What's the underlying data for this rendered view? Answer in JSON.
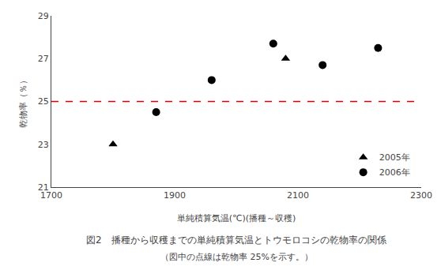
{
  "chart_data": {
    "type": "scatter",
    "title": "図2　播種から収穫までの単純積算気温とトウモロコシの乾物率の関係",
    "subtitle": "（図中の点線は乾物率 25%を示す。）",
    "xlabel": "単純積算気温(℃)(播種～収穫)",
    "ylabel": "乾物率（％）",
    "series": [
      {
        "name": "2005年",
        "color": "#000000",
        "marker": "triangle",
        "x": [
          1800,
          2080
        ],
        "values": [
          23.0,
          27.0
        ]
      },
      {
        "name": "2006年",
        "color": "#000000",
        "marker": "circle",
        "x": [
          1870,
          1960,
          2060,
          2140,
          2230
        ],
        "values": [
          24.5,
          26.0,
          27.7,
          26.7,
          27.5
        ]
      }
    ],
    "annotations": [
      {
        "type": "hline",
        "y": 25.0,
        "color": "#dd0000",
        "line_style": "dashed"
      }
    ],
    "xlim": [
      1700,
      2300
    ],
    "ylim": [
      21,
      29
    ],
    "xticks": [
      1700,
      1900,
      2100,
      2300
    ],
    "yticks": [
      21,
      23,
      25,
      27,
      29
    ],
    "legend": "lower right",
    "grid": false
  }
}
